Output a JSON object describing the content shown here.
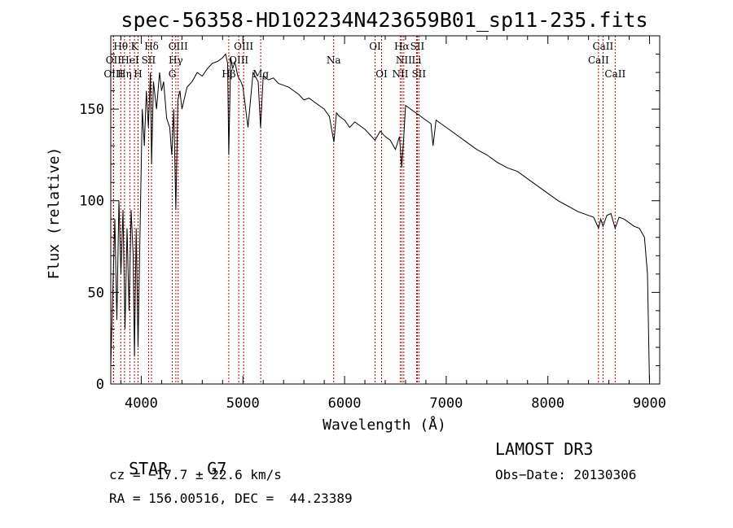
{
  "chart_data": {
    "type": "line",
    "title": "spec-56358-HD102234N423659B01_sp11-235.fits",
    "xlabel": "Wavelength (Å)",
    "ylabel": "Flux (relative)",
    "xlim": [
      3700,
      9100
    ],
    "ylim": [
      0,
      190
    ],
    "xticks": [
      4000,
      5000,
      6000,
      7000,
      8000,
      9000
    ],
    "yticks": [
      0,
      50,
      100,
      150
    ],
    "x_tick_labels": [
      "4000",
      "5000",
      "6000",
      "7000",
      "8000",
      "9000"
    ],
    "y_tick_labels": [
      "0",
      "50",
      "100",
      "150"
    ],
    "series": [
      {
        "name": "spectrum",
        "x": [
          3700,
          3720,
          3740,
          3760,
          3780,
          3800,
          3820,
          3840,
          3860,
          3880,
          3900,
          3920,
          3933,
          3950,
          3968,
          3990,
          4010,
          4030,
          4050,
          4070,
          4090,
          4101,
          4120,
          4150,
          4180,
          4200,
          4220,
          4250,
          4280,
          4300,
          4320,
          4340,
          4360,
          4380,
          4400,
          4450,
          4500,
          4550,
          4600,
          4650,
          4700,
          4750,
          4800,
          4830,
          4850,
          4861,
          4880,
          4900,
          4920,
          4950,
          4980,
          5000,
          5050,
          5100,
          5150,
          5173,
          5200,
          5250,
          5300,
          5350,
          5400,
          5450,
          5500,
          5550,
          5600,
          5650,
          5700,
          5750,
          5800,
          5850,
          5895,
          5920,
          5950,
          6000,
          6050,
          6100,
          6150,
          6200,
          6250,
          6300,
          6350,
          6400,
          6450,
          6500,
          6540,
          6563,
          6580,
          6600,
          6650,
          6700,
          6750,
          6800,
          6850,
          6870,
          6900,
          6950,
          7000,
          7100,
          7200,
          7300,
          7400,
          7500,
          7600,
          7700,
          7800,
          7900,
          8000,
          8100,
          8200,
          8300,
          8400,
          8450,
          8498,
          8520,
          8542,
          8580,
          8620,
          8662,
          8700,
          8750,
          8800,
          8850,
          8900,
          8950,
          8980,
          9000
        ],
        "y": [
          10,
          50,
          90,
          35,
          100,
          60,
          95,
          30,
          85,
          40,
          95,
          70,
          15,
          85,
          20,
          90,
          150,
          130,
          160,
          140,
          170,
          120,
          165,
          150,
          170,
          160,
          165,
          145,
          140,
          125,
          150,
          95,
          155,
          160,
          150,
          162,
          165,
          170,
          168,
          172,
          175,
          176,
          178,
          180,
          175,
          125,
          178,
          172,
          176,
          168,
          165,
          162,
          140,
          170,
          165,
          140,
          168,
          166,
          167,
          164,
          163,
          162,
          160,
          158,
          155,
          156,
          154,
          152,
          150,
          146,
          132,
          148,
          146,
          144,
          140,
          143,
          141,
          139,
          136,
          133,
          138,
          135,
          133,
          128,
          135,
          118,
          133,
          152,
          150,
          148,
          146,
          144,
          142,
          130,
          144,
          142,
          140,
          136,
          132,
          128,
          125,
          121,
          118,
          116,
          112,
          108,
          104,
          100,
          97,
          94,
          92,
          91,
          85,
          90,
          86,
          92,
          93,
          85,
          91,
          90,
          88,
          86,
          85,
          80,
          60,
          0
        ]
      }
    ],
    "spectral_lines": [
      {
        "name": "Hθ",
        "x": 3798,
        "row": 1
      },
      {
        "name": "OII",
        "x": 3727,
        "row": 2
      },
      {
        "name": "OIII",
        "x": 3727,
        "row": 3
      },
      {
        "name": "K",
        "x": 3933,
        "row": 1
      },
      {
        "name": "HeI",
        "x": 3889,
        "row": 2
      },
      {
        "name": "Hη",
        "x": 3835,
        "row": 3
      },
      {
        "name": "SII",
        "x": 4072,
        "row": 2
      },
      {
        "name": "H",
        "x": 3968,
        "row": 3
      },
      {
        "name": "Hδ",
        "x": 4101,
        "row": 1
      },
      {
        "name": "OIII",
        "x": 4363,
        "row": 1
      },
      {
        "name": "Hγ",
        "x": 4340,
        "row": 2
      },
      {
        "name": "G",
        "x": 4305,
        "row": 3
      },
      {
        "name": "OIII",
        "x": 5007,
        "row": 1
      },
      {
        "name": "OIII",
        "x": 4959,
        "row": 2
      },
      {
        "name": "Hβ",
        "x": 4861,
        "row": 3
      },
      {
        "name": "Mg",
        "x": 5175,
        "row": 3
      },
      {
        "name": "Na",
        "x": 5893,
        "row": 2
      },
      {
        "name": "OI",
        "x": 6300,
        "row": 1
      },
      {
        "name": "OI",
        "x": 6364,
        "row": 3
      },
      {
        "name": "Hα",
        "x": 6563,
        "row": 1
      },
      {
        "name": "NII",
        "x": 6583,
        "row": 2
      },
      {
        "name": "NII",
        "x": 6548,
        "row": 3
      },
      {
        "name": "SII",
        "x": 6716,
        "row": 1
      },
      {
        "name": "Li",
        "x": 6708,
        "row": 2
      },
      {
        "name": "SII",
        "x": 6731,
        "row": 3
      },
      {
        "name": "CaII",
        "x": 8542,
        "row": 1
      },
      {
        "name": "CaII",
        "x": 8498,
        "row": 2
      },
      {
        "name": "CaII",
        "x": 8662,
        "row": 3
      }
    ]
  },
  "info": {
    "object_class": "STAR",
    "subclass": "G7",
    "survey": "LAMOST DR3",
    "cz": "cz = −17.7 ± 22.6 km/s",
    "obs_date": "Obs−Date: 20130306",
    "coords": "RA = 156.00516, DEC =  44.23389"
  },
  "colors": {
    "spectrum": "#000000",
    "line_markers": "#c00000",
    "axes": "#000000"
  }
}
